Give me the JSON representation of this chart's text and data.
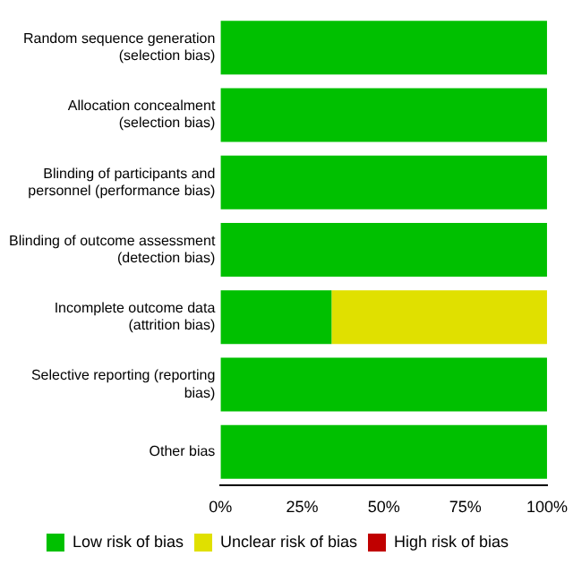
{
  "chart_data": {
    "type": "bar",
    "orientation": "horizontal",
    "stacked": true,
    "categories": [
      "Random sequence generation (selection bias)",
      "Allocation concealment (selection bias)",
      "Blinding of participants and personnel (performance bias)",
      "Blinding of outcome assessment (detection bias)",
      "Incomplete outcome data (attrition bias)",
      "Selective reporting (reporting bias)",
      "Other bias"
    ],
    "series": [
      {
        "name": "Low risk of bias",
        "color": "#00c000",
        "values": [
          100,
          100,
          100,
          100,
          34,
          100,
          100
        ]
      },
      {
        "name": "Unclear risk of bias",
        "color": "#e0e000",
        "values": [
          0,
          0,
          0,
          0,
          66,
          0,
          0
        ]
      },
      {
        "name": "High risk of bias",
        "color": "#c00000",
        "values": [
          0,
          0,
          0,
          0,
          0,
          0,
          0
        ]
      }
    ],
    "xlim": [
      0,
      100
    ],
    "xticks": [
      {
        "value": 0,
        "label": "0%"
      },
      {
        "value": 25,
        "label": "25%"
      },
      {
        "value": 50,
        "label": "50%"
      },
      {
        "value": 75,
        "label": "75%"
      },
      {
        "value": 100,
        "label": "100%"
      }
    ],
    "grid": false,
    "legend": "bottom"
  }
}
